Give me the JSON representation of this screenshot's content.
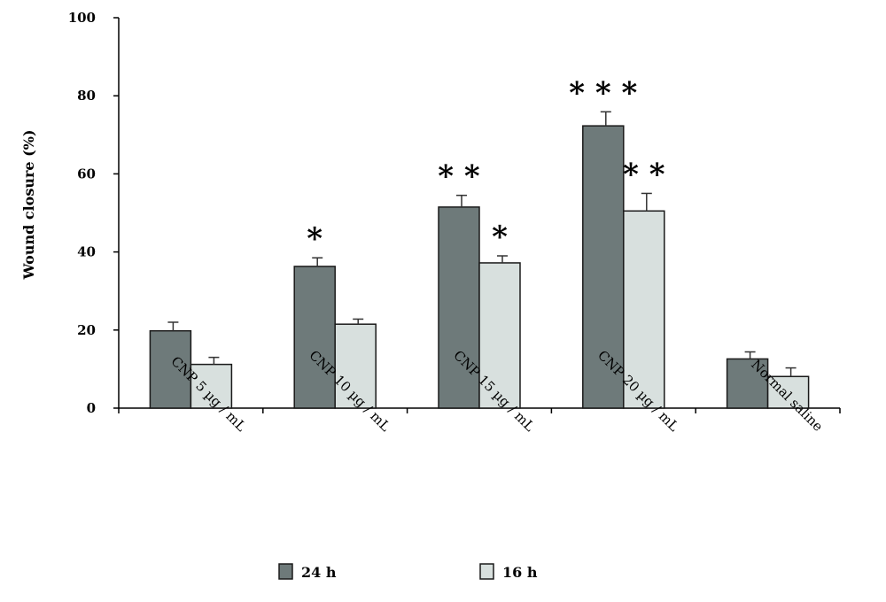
{
  "chart_data": {
    "type": "bar",
    "title": "",
    "xlabel": "",
    "ylabel": "Wound closure (%)",
    "ylim": [
      0,
      100
    ],
    "yticks": [
      "0",
      "20",
      "40",
      "60",
      "80",
      "100"
    ],
    "grid": false,
    "legend_position": "bottom",
    "categories": [
      "CNP 5 µg / mL",
      "CNP 10 µg / mL",
      "CNP 15 µg / mL",
      "CNP 20 µg / mL",
      "Normal saline"
    ],
    "series": [
      {
        "name": "24 h",
        "color": "#6e7a7a",
        "values": [
          19.8,
          36.3,
          51.5,
          72.3,
          12.6
        ],
        "errors": [
          2.2,
          2.2,
          3.0,
          3.6,
          1.8
        ],
        "annotations": [
          "",
          "*",
          "* *",
          "* * *",
          ""
        ]
      },
      {
        "name": "16 h",
        "color": "#d8e0de",
        "values": [
          11.2,
          21.5,
          37.2,
          50.5,
          8.1
        ],
        "errors": [
          1.8,
          1.3,
          1.8,
          4.5,
          2.2
        ],
        "annotations": [
          "",
          "",
          "*",
          "* *",
          ""
        ]
      }
    ]
  }
}
